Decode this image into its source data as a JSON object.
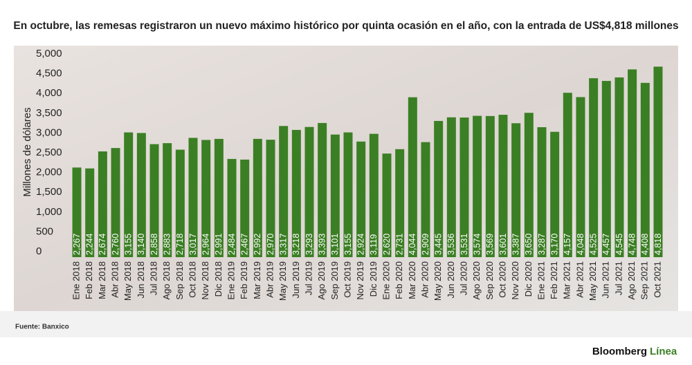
{
  "chart_data": {
    "type": "bar",
    "title": "En octubre, las remesas registraron un nuevo máximo histórico por quinta ocasión en el año, con la entrada de US$4,818 millones",
    "y_label": "Millones de dólares",
    "source": "Fuente: Banxico",
    "brand": [
      "Bloomberg",
      "Línea"
    ],
    "color": "#3b7f24",
    "categories": [
      "Ene 2018",
      "Feb 2018",
      "Mar 2018",
      "Abr 2018",
      "May 2018",
      "Jun 2018",
      "Jul 2018",
      "Ago 2018",
      "Sep 2018",
      "Oct 2018",
      "Nov 2018",
      "Dic 2018",
      "Ene 2019",
      "Feb 2019",
      "Mar 2019",
      "Abr 2019",
      "May 2019",
      "Jun 2019",
      "Jul 2019",
      "Ago 2019",
      "Sep 2019",
      "Oct 2019",
      "Nov 2019",
      "Dic 2019",
      "Ene 2020",
      "Feb 2020",
      "Mar 2020",
      "Abr 2020",
      "May 2020",
      "Jun 2020",
      "Jul 2020",
      "Ago 2020",
      "Sep 2020",
      "Oct 2020",
      "Nov 2020",
      "Dic 2020",
      "Ene 2021",
      "Feb 2021",
      "Mar 2021",
      "Abr 2021",
      "May 2021",
      "Jun 2021",
      "Jul 2021",
      "Ago 2021",
      "Sep 2021",
      "Oct 2021"
    ],
    "values": [
      2267,
      2244,
      2674,
      2760,
      3155,
      3140,
      2858,
      2883,
      2718,
      3017,
      2964,
      2991,
      2484,
      2467,
      2992,
      2970,
      3317,
      3218,
      3293,
      3393,
      3101,
      3155,
      2924,
      3119,
      2620,
      2731,
      4044,
      2909,
      3445,
      3536,
      3531,
      3574,
      3569,
      3601,
      3387,
      3650,
      3287,
      3170,
      4157,
      4048,
      4525,
      4457,
      4545,
      4748,
      4408,
      4818
    ],
    "value_labels": [
      "2,267",
      "2,244",
      "2,674",
      "2,760",
      "3,155",
      "3,140",
      "2,858",
      "2,883",
      "2,718",
      "3,017",
      "2,964",
      "2,991",
      "2,484",
      "2,467",
      "2,992",
      "2,970",
      "3,317",
      "3,218",
      "3,293",
      "3,393",
      "3,101",
      "3,155",
      "2,924",
      "3,119",
      "2,620",
      "2,731",
      "4,044",
      "2,909",
      "3,445",
      "3,536",
      "3,531",
      "3,574",
      "3,569",
      "3,601",
      "3,387",
      "3,650",
      "3,287",
      "3,170",
      "4,157",
      "4,048",
      "4,525",
      "4,457",
      "4,545",
      "4,748",
      "4,408",
      "4,818"
    ],
    "ylim": [
      0,
      5000
    ],
    "yticks": [
      0,
      500,
      {
        "value": 1000,
        "label": "1,000"
      },
      {
        "value": 1500,
        "label": "1,500"
      },
      {
        "value": 2000,
        "label": "2,000"
      },
      {
        "value": 2500,
        "label": "2,500"
      },
      {
        "value": 3000,
        "label": "3,000"
      },
      {
        "value": 3500,
        "label": "3,500"
      },
      {
        "value": 4000,
        "label": "4,000"
      },
      {
        "value": 4500,
        "label": "4,500"
      },
      {
        "value": 5000,
        "label": "5,000"
      }
    ],
    "grid": false
  }
}
